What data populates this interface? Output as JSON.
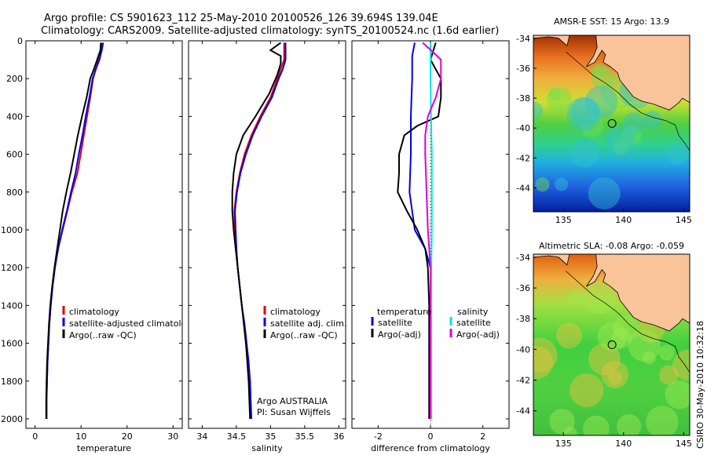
{
  "title": {
    "line1": "Argo profile: CS 5901623_112 25-May-2010 20100526_126 39.694S 139.04E",
    "line2": "Climatology: CARS2009. Satellite-adjusted climatology: synTS_20100524.nc (1.6d earlier)"
  },
  "side_label": "CSIRO 30-May-2010 10:32:18",
  "colors": {
    "red": "#dd0000",
    "blue": "#0000ee",
    "black": "#000000",
    "cyan": "#00e5e5",
    "magenta": "#dd00dd",
    "land": "#f9c49a"
  },
  "chart_data": [
    {
      "type": "line",
      "id": "temperature",
      "xlabel": "temperature",
      "ylabel": "",
      "xlim": [
        -2,
        32
      ],
      "ylim": [
        2050,
        0
      ],
      "xticks": [
        0,
        10,
        20,
        30
      ],
      "yticks": [
        0,
        200,
        400,
        600,
        800,
        1000,
        1200,
        1400,
        1600,
        1800,
        2000
      ],
      "legend": {
        "placement": "lower-right",
        "entries": [
          "climatology",
          "satellite-adjusted climatology",
          "Argo(..raw -QC)"
        ]
      },
      "annotations": [],
      "series": [
        {
          "name": "climatology",
          "color": "red",
          "points": [
            [
              14.5,
              10
            ],
            [
              14.2,
              50
            ],
            [
              13.8,
              100
            ],
            [
              13.2,
              150
            ],
            [
              12.6,
              200
            ],
            [
              12.0,
              300
            ],
            [
              11.3,
              400
            ],
            [
              10.6,
              500
            ],
            [
              9.9,
              600
            ],
            [
              9.2,
              700
            ],
            [
              8.0,
              800
            ],
            [
              7.0,
              900
            ],
            [
              6.0,
              1000
            ],
            [
              5.0,
              1100
            ],
            [
              4.3,
              1200
            ],
            [
              3.8,
              1300
            ],
            [
              3.4,
              1400
            ],
            [
              3.1,
              1500
            ],
            [
              2.9,
              1600
            ],
            [
              2.7,
              1700
            ],
            [
              2.6,
              1800
            ],
            [
              2.5,
              1900
            ],
            [
              2.5,
              2000
            ]
          ]
        },
        {
          "name": "satellite-adjusted climatology",
          "color": "blue",
          "points": [
            [
              14.8,
              10
            ],
            [
              14.5,
              50
            ],
            [
              14.0,
              100
            ],
            [
              13.2,
              150
            ],
            [
              12.5,
              200
            ],
            [
              11.8,
              300
            ],
            [
              11.0,
              400
            ],
            [
              10.3,
              500
            ],
            [
              9.5,
              600
            ],
            [
              8.8,
              700
            ],
            [
              7.8,
              800
            ],
            [
              6.9,
              900
            ],
            [
              5.9,
              1000
            ],
            [
              5.0,
              1100
            ],
            [
              4.3,
              1200
            ],
            [
              3.8,
              1300
            ],
            [
              3.4,
              1400
            ],
            [
              3.1,
              1500
            ],
            [
              2.9,
              1600
            ],
            [
              2.7,
              1700
            ],
            [
              2.6,
              1800
            ],
            [
              2.5,
              1900
            ],
            [
              2.5,
              2000
            ]
          ]
        },
        {
          "name": "Argo(..raw -QC)",
          "color": "black",
          "points": [
            [
              14.3,
              10
            ],
            [
              14.2,
              50
            ],
            [
              13.5,
              100
            ],
            [
              12.8,
              150
            ],
            [
              12.0,
              200
            ],
            [
              11.2,
              300
            ],
            [
              10.2,
              400
            ],
            [
              9.3,
              500
            ],
            [
              8.5,
              600
            ],
            [
              7.7,
              700
            ],
            [
              6.8,
              800
            ],
            [
              6.0,
              900
            ],
            [
              5.4,
              1000
            ],
            [
              4.8,
              1100
            ],
            [
              4.2,
              1200
            ],
            [
              3.7,
              1300
            ],
            [
              3.3,
              1400
            ],
            [
              3.0,
              1500
            ],
            [
              2.8,
              1600
            ],
            [
              2.6,
              1700
            ],
            [
              2.5,
              1800
            ],
            [
              2.4,
              1900
            ],
            [
              2.4,
              2000
            ]
          ]
        }
      ]
    },
    {
      "type": "line",
      "id": "salinity",
      "xlabel": "salinity",
      "ylabel": "",
      "xlim": [
        33.8,
        36.1
      ],
      "ylim": [
        2050,
        0
      ],
      "xticks": [
        34,
        34.5,
        35,
        35.5,
        36
      ],
      "yticks": [
        0,
        200,
        400,
        600,
        800,
        1000,
        1200,
        1400,
        1600,
        1800,
        2000
      ],
      "legend": {
        "placement": "lower-right",
        "entries": [
          "climatology",
          "satellite adj. clim.",
          "Argo(..raw -QC)"
        ]
      },
      "annotations": [
        "Argo AUSTRALIA",
        "PI: Susan Wijffels"
      ],
      "series": [
        {
          "name": "climatology",
          "color": "red",
          "points": [
            [
              35.2,
              10
            ],
            [
              35.2,
              50
            ],
            [
              35.2,
              100
            ],
            [
              35.15,
              150
            ],
            [
              35.1,
              200
            ],
            [
              35.0,
              300
            ],
            [
              34.85,
              400
            ],
            [
              34.72,
              500
            ],
            [
              34.62,
              600
            ],
            [
              34.55,
              700
            ],
            [
              34.5,
              800
            ],
            [
              34.47,
              900
            ],
            [
              34.48,
              1000
            ],
            [
              34.5,
              1100
            ],
            [
              34.52,
              1200
            ],
            [
              34.55,
              1300
            ],
            [
              34.58,
              1400
            ],
            [
              34.62,
              1500
            ],
            [
              34.65,
              1600
            ],
            [
              34.68,
              1700
            ],
            [
              34.7,
              1800
            ],
            [
              34.71,
              1900
            ],
            [
              34.72,
              2000
            ]
          ]
        },
        {
          "name": "satellite adj. clim.",
          "color": "blue",
          "points": [
            [
              35.22,
              10
            ],
            [
              35.22,
              50
            ],
            [
              35.22,
              100
            ],
            [
              35.18,
              150
            ],
            [
              35.12,
              200
            ],
            [
              35.02,
              300
            ],
            [
              34.87,
              400
            ],
            [
              34.74,
              500
            ],
            [
              34.64,
              600
            ],
            [
              34.56,
              700
            ],
            [
              34.51,
              800
            ],
            [
              34.48,
              900
            ],
            [
              34.49,
              1000
            ],
            [
              34.5,
              1100
            ],
            [
              34.52,
              1200
            ],
            [
              34.55,
              1300
            ],
            [
              34.58,
              1400
            ],
            [
              34.62,
              1500
            ],
            [
              34.65,
              1600
            ],
            [
              34.68,
              1700
            ],
            [
              34.7,
              1800
            ],
            [
              34.71,
              1900
            ],
            [
              34.72,
              2000
            ]
          ]
        },
        {
          "name": "Argo(..raw -QC)",
          "color": "black",
          "points": [
            [
              35.15,
              10
            ],
            [
              35.0,
              50
            ],
            [
              35.15,
              80
            ],
            [
              35.15,
              120
            ],
            [
              35.1,
              180
            ],
            [
              34.98,
              280
            ],
            [
              34.78,
              400
            ],
            [
              34.6,
              500
            ],
            [
              34.5,
              600
            ],
            [
              34.46,
              700
            ],
            [
              34.44,
              800
            ],
            [
              34.44,
              900
            ],
            [
              34.46,
              1000
            ],
            [
              34.49,
              1100
            ],
            [
              34.52,
              1200
            ],
            [
              34.55,
              1300
            ],
            [
              34.58,
              1400
            ],
            [
              34.61,
              1500
            ],
            [
              34.64,
              1600
            ],
            [
              34.66,
              1700
            ],
            [
              34.68,
              1800
            ],
            [
              34.69,
              1900
            ],
            [
              34.7,
              2000
            ]
          ]
        }
      ]
    },
    {
      "type": "line",
      "id": "difference",
      "xlabel": "difference from climatology",
      "ylabel": "",
      "xlim": [
        -3,
        3
      ],
      "ylim": [
        2050,
        0
      ],
      "xticks": [
        -2,
        0,
        2
      ],
      "yticks": [
        0,
        200,
        400,
        600,
        800,
        1000,
        1200,
        1400,
        1600,
        1800,
        2000
      ],
      "legend": {
        "placement": "lower",
        "entries": [
          "temperature",
          "satellite",
          "Argo(-adj)",
          "salinity",
          "satellite",
          "Argo(-adj)"
        ]
      },
      "annotations": [],
      "series": [
        {
          "name": "satellite",
          "color": "blue",
          "points": [
            [
              -0.6,
              10
            ],
            [
              -0.7,
              80
            ],
            [
              -0.7,
              200
            ],
            [
              -0.75,
              400
            ],
            [
              -0.75,
              600
            ],
            [
              -0.8,
              800
            ],
            [
              -0.6,
              1000
            ],
            [
              -0.2,
              1100
            ],
            [
              0.0,
              1200
            ],
            [
              0.0,
              2000
            ]
          ]
        },
        {
          "name": "Argo(-adj)",
          "color": "black",
          "points": [
            [
              0.2,
              10
            ],
            [
              0.0,
              100
            ],
            [
              0.4,
              200
            ],
            [
              0.4,
              300
            ],
            [
              0.3,
              400
            ],
            [
              -0.5,
              450
            ],
            [
              -1.0,
              500
            ],
            [
              -1.2,
              600
            ],
            [
              -1.2,
              700
            ],
            [
              -1.25,
              800
            ],
            [
              -0.9,
              900
            ],
            [
              -0.5,
              1000
            ],
            [
              -0.2,
              1100
            ],
            [
              -0.1,
              1200
            ],
            [
              -0.05,
              1400
            ],
            [
              -0.05,
              2000
            ]
          ]
        },
        {
          "name": "satellite",
          "color": "cyan",
          "points": [
            [
              0.0,
              10
            ],
            [
              0.0,
              100
            ],
            [
              0.0,
              200
            ],
            [
              0.02,
              400
            ],
            [
              0.05,
              600
            ],
            [
              0.05,
              800
            ],
            [
              0.05,
              1000
            ],
            [
              0.03,
              1200
            ],
            [
              0.02,
              1600
            ],
            [
              0.02,
              2000
            ]
          ]
        },
        {
          "name": "Argo(-adj)",
          "color": "magenta",
          "points": [
            [
              -0.3,
              10
            ],
            [
              0.1,
              60
            ],
            [
              0.4,
              100
            ],
            [
              0.4,
              200
            ],
            [
              0.2,
              300
            ],
            [
              -0.1,
              400
            ],
            [
              -0.2,
              500
            ],
            [
              -0.2,
              600
            ],
            [
              -0.15,
              800
            ],
            [
              -0.1,
              1000
            ],
            [
              0.0,
              1200
            ],
            [
              0.0,
              2000
            ]
          ]
        }
      ]
    }
  ],
  "maps": [
    {
      "id": "sst",
      "title": "AMSR-E SST: 15 Argo: 13.9",
      "xticks": [
        135,
        140,
        145
      ],
      "yticks": [
        -34,
        -36,
        -38,
        -40,
        -42,
        -44
      ],
      "xlim": [
        132.5,
        145.5
      ],
      "ylim": [
        -45.6,
        -33.8
      ],
      "float_position": [
        139.04,
        -39.694
      ]
    },
    {
      "id": "sla",
      "title": "Altimetric SLA: -0.08 Argo: -0.059",
      "xticks": [
        135,
        140,
        145
      ],
      "yticks": [
        -34,
        -36,
        -38,
        -40,
        -42,
        -44
      ],
      "xlim": [
        132.5,
        145.5
      ],
      "ylim": [
        -45.6,
        -33.8
      ],
      "float_position": [
        139.04,
        -39.694
      ]
    }
  ]
}
